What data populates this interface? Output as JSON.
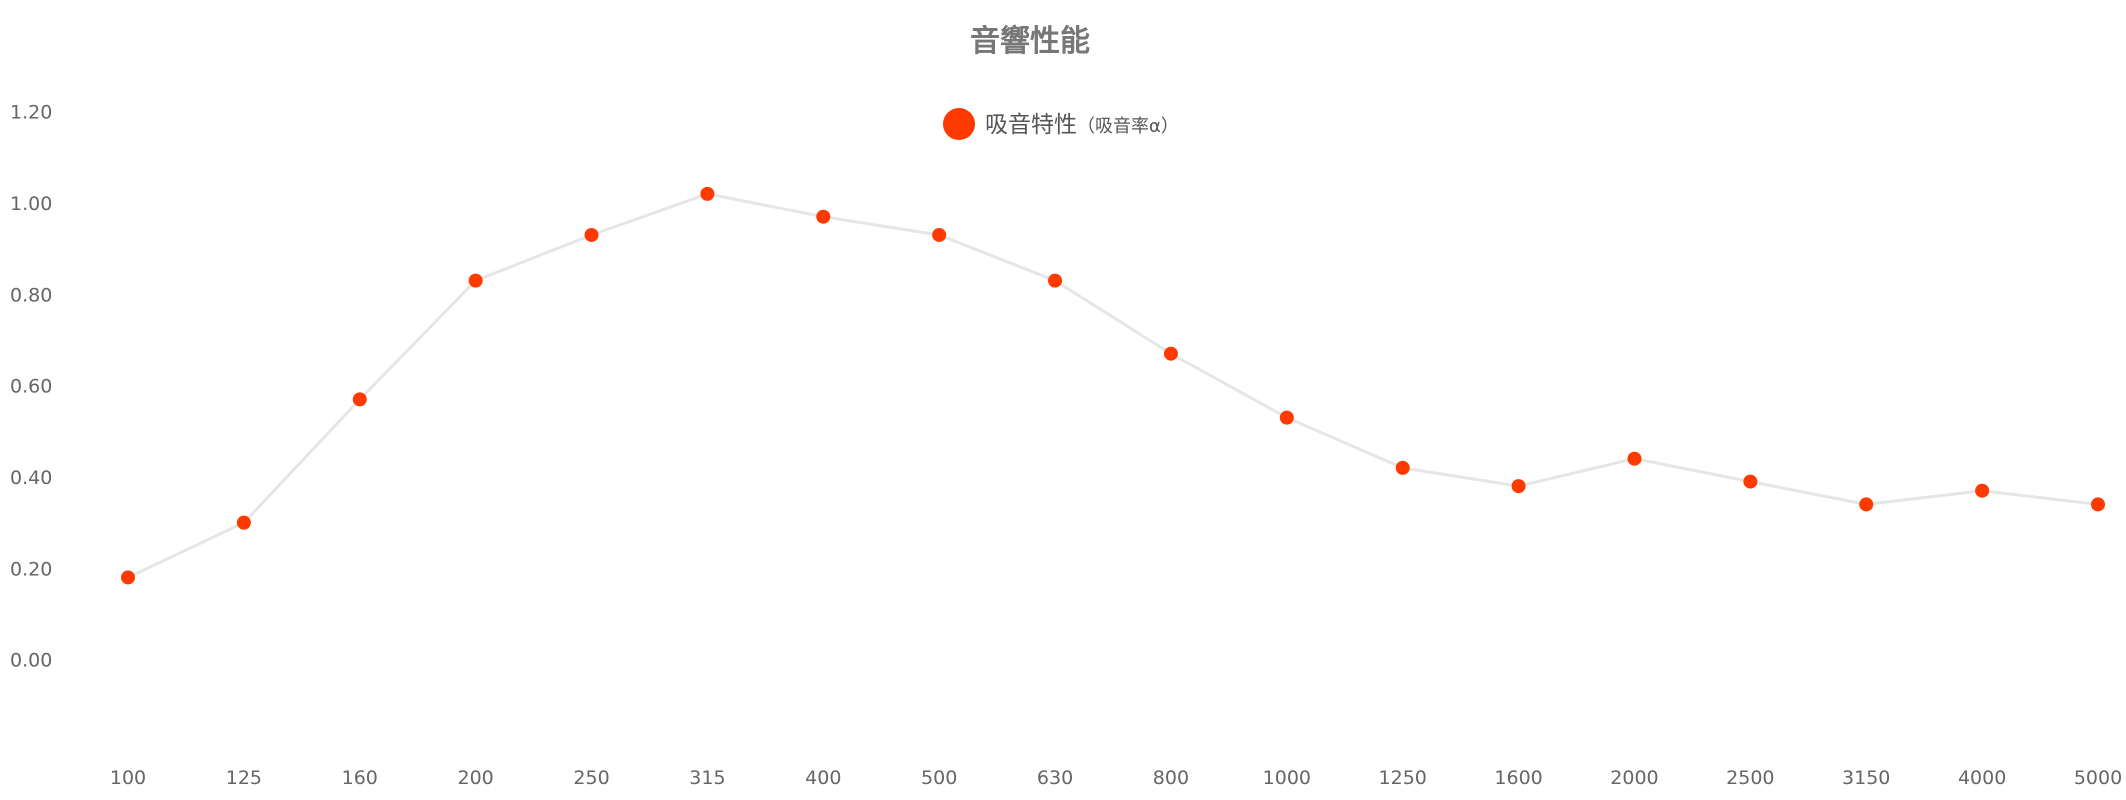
{
  "chart_data": {
    "type": "line",
    "title": "音響性能",
    "categories": [
      "100",
      "125",
      "160",
      "200",
      "250",
      "315",
      "400",
      "500",
      "630",
      "800",
      "1000",
      "1250",
      "1600",
      "2000",
      "2500",
      "3150",
      "4000",
      "5000"
    ],
    "series": [
      {
        "name": "吸音特性",
        "name_suffix": "（吸音率α）",
        "values": [
          0.18,
          0.3,
          0.57,
          0.83,
          0.93,
          1.02,
          0.97,
          0.93,
          0.83,
          0.67,
          0.53,
          0.42,
          0.38,
          0.44,
          0.39,
          0.34,
          0.37,
          0.34
        ],
        "marker_color": "#ff3a00",
        "line_color": "#e6e6e6"
      }
    ],
    "y_ticks": [
      "0.00",
      "0.20",
      "0.40",
      "0.60",
      "0.80",
      "1.00",
      "1.20"
    ],
    "ylim": [
      -0.2,
      1.3
    ],
    "xlabel": "",
    "ylabel": "",
    "grid": false,
    "legend_position": "top-center"
  }
}
